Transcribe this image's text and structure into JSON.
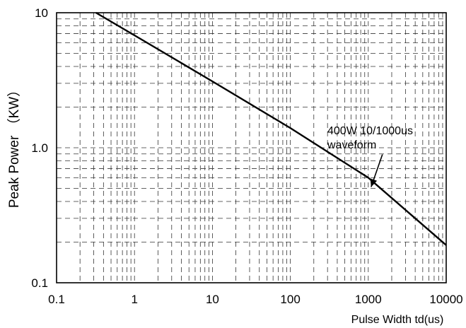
{
  "chart_data": {
    "type": "line",
    "title": "",
    "xlabel": "Pulse Width td(us)",
    "ylabel": "Peak Power （KW）",
    "xscale": "log",
    "yscale": "log",
    "xlim": [
      0.1,
      10000
    ],
    "ylim": [
      0.1,
      10
    ],
    "grid": true,
    "grid_style": "dashed",
    "x_ticks": [
      "0.1",
      "1",
      "10",
      "100",
      "1000",
      "10000"
    ],
    "y_ticks": [
      "0.1",
      "1.0",
      "10"
    ],
    "series": [
      {
        "color": "#000000",
        "x": [
          0.32,
          1,
          10,
          100,
          1000,
          10000
        ],
        "y": [
          10,
          6.8,
          3.1,
          1.4,
          0.6,
          0.19
        ]
      }
    ],
    "annotation": {
      "lines": [
        "400W 10/1000us",
        "waveform"
      ],
      "points_to": {
        "x": 1000,
        "y": 0.5
      }
    }
  }
}
